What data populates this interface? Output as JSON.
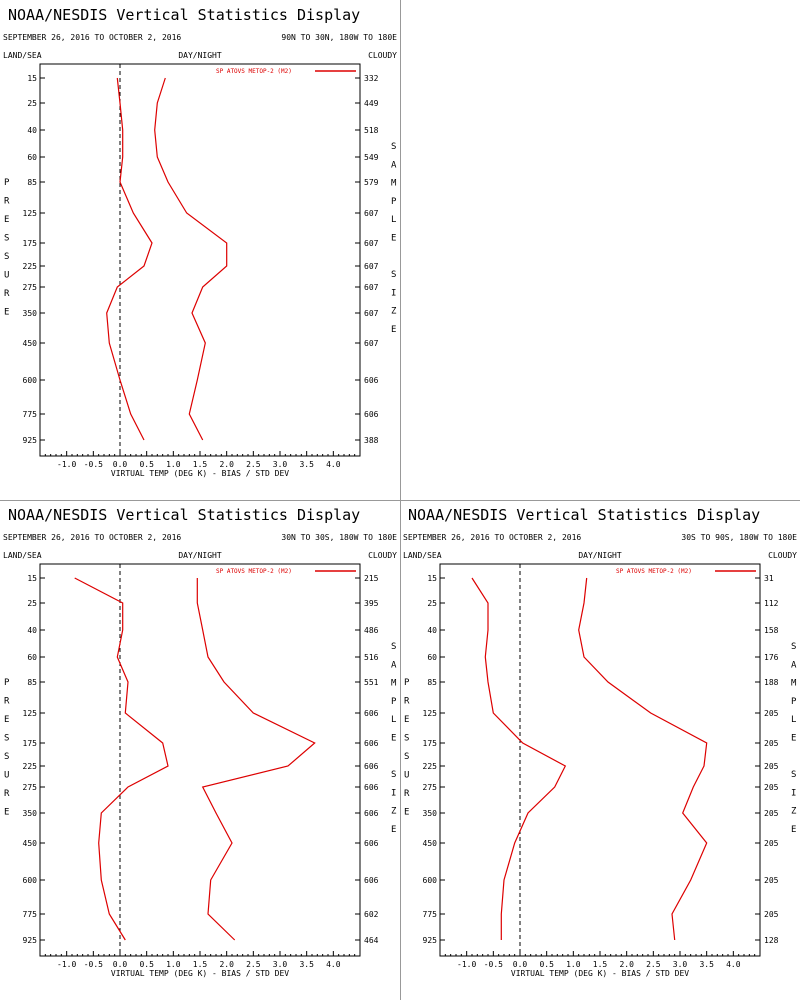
{
  "colors": {
    "series": "#dd0000",
    "axis": "#000000",
    "zero_line": "#000000",
    "separator": "#999999"
  },
  "chart_data": [
    {
      "type": "line",
      "title": "NOAA/NESDIS Vertical Statistics Display",
      "date_range": "SEPTEMBER 26, 2016 TO OCTOBER 2, 2016",
      "region": "90N TO 30N, 180W TO 180E",
      "label_left": "LAND/SEA",
      "label_middle": "DAY/NIGHT",
      "label_right": "CLOUDY",
      "legend": "SP ATOVS METOP-2 (M2)",
      "xlabel": "VIRTUAL TEMP (DEG K) - BIAS / STD DEV",
      "ylabel": "PRESSURE",
      "y2label": "SAMPLE SIZE",
      "xlim": [
        -1.5,
        4.5
      ],
      "x_ticks": [
        "-1.0",
        "-0.5",
        "0.0",
        "0.5",
        "1.0",
        "1.5",
        "2.0",
        "2.5",
        "3.0",
        "3.5",
        "4.0"
      ],
      "pressure_levels": [
        "15",
        "25",
        "40",
        "60",
        "85",
        "125",
        "175",
        "225",
        "275",
        "350",
        "450",
        "600",
        "775",
        "925"
      ],
      "sample_size": [
        "332",
        "449",
        "518",
        "549",
        "579",
        "607",
        "607",
        "607",
        "607",
        "607",
        "607",
        "606",
        "606",
        "388"
      ],
      "series": [
        {
          "name": "bias",
          "values": [
            -0.05,
            0.0,
            0.05,
            0.05,
            0.0,
            0.25,
            0.6,
            0.45,
            -0.05,
            -0.25,
            -0.2,
            0.0,
            0.2,
            0.45
          ]
        },
        {
          "name": "std_dev",
          "values": [
            0.85,
            0.7,
            0.65,
            0.7,
            0.9,
            1.25,
            2.0,
            2.0,
            1.55,
            1.35,
            1.6,
            1.45,
            1.3,
            1.55
          ]
        }
      ]
    },
    {
      "type": "line",
      "title": "NOAA/NESDIS Vertical Statistics Display",
      "date_range": "SEPTEMBER 26, 2016 TO OCTOBER 2, 2016",
      "region": "30N TO 30S, 180W TO 180E",
      "label_left": "LAND/SEA",
      "label_middle": "DAY/NIGHT",
      "label_right": "CLOUDY",
      "legend": "SP ATOVS METOP-2 (M2)",
      "xlabel": "VIRTUAL TEMP (DEG K) - BIAS / STD DEV",
      "ylabel": "PRESSURE",
      "y2label": "SAMPLE SIZE",
      "xlim": [
        -1.5,
        4.5
      ],
      "x_ticks": [
        "-1.0",
        "-0.5",
        "0.0",
        "0.5",
        "1.0",
        "1.5",
        "2.0",
        "2.5",
        "3.0",
        "3.5",
        "4.0"
      ],
      "pressure_levels": [
        "15",
        "25",
        "40",
        "60",
        "85",
        "125",
        "175",
        "225",
        "275",
        "350",
        "450",
        "600",
        "775",
        "925"
      ],
      "sample_size": [
        "215",
        "395",
        "486",
        "516",
        "551",
        "606",
        "606",
        "606",
        "606",
        "606",
        "606",
        "606",
        "602",
        "464"
      ],
      "series": [
        {
          "name": "bias",
          "values": [
            -0.85,
            0.05,
            0.05,
            -0.05,
            0.15,
            0.1,
            0.8,
            0.9,
            0.15,
            -0.35,
            -0.4,
            -0.35,
            -0.2,
            0.1
          ]
        },
        {
          "name": "std_dev",
          "values": [
            1.45,
            1.45,
            1.55,
            1.65,
            1.95,
            2.5,
            3.65,
            3.15,
            1.55,
            1.8,
            2.1,
            1.7,
            1.65,
            2.15
          ]
        }
      ]
    },
    {
      "type": "line",
      "title": "NOAA/NESDIS Vertical Statistics Display",
      "date_range": "SEPTEMBER 26, 2016 TO OCTOBER 2, 2016",
      "region": "30S TO 90S, 180W TO 180E",
      "label_left": "LAND/SEA",
      "label_middle": "DAY/NIGHT",
      "label_right": "CLOUDY",
      "legend": "SP ATOVS METOP-2 (M2)",
      "xlabel": "VIRTUAL TEMP (DEG K) - BIAS / STD DEV",
      "ylabel": "PRESSURE",
      "y2label": "SAMPLE SIZE",
      "xlim": [
        -1.5,
        4.5
      ],
      "x_ticks": [
        "-1.0",
        "-0.5",
        "0.0",
        "0.5",
        "1.0",
        "1.5",
        "2.0",
        "2.5",
        "3.0",
        "3.5",
        "4.0"
      ],
      "pressure_levels": [
        "15",
        "25",
        "40",
        "60",
        "85",
        "125",
        "175",
        "225",
        "275",
        "350",
        "450",
        "600",
        "775",
        "925"
      ],
      "sample_size": [
        "31",
        "112",
        "158",
        "176",
        "188",
        "205",
        "205",
        "205",
        "205",
        "205",
        "205",
        "205",
        "205",
        "128"
      ],
      "series": [
        {
          "name": "bias",
          "values": [
            -0.9,
            -0.6,
            -0.6,
            -0.65,
            -0.6,
            -0.5,
            0.05,
            0.85,
            0.65,
            0.15,
            -0.1,
            -0.3,
            -0.35,
            -0.35
          ]
        },
        {
          "name": "std_dev",
          "values": [
            1.25,
            1.2,
            1.1,
            1.2,
            1.65,
            2.45,
            3.5,
            3.45,
            3.25,
            3.05,
            3.5,
            3.2,
            2.85,
            2.9
          ]
        }
      ]
    }
  ]
}
